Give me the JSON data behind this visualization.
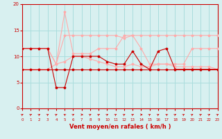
{
  "background_color": "#d8f0f0",
  "grid_color": "#aadddd",
  "xlabel": "Vent moyen/en rafales ( km/h )",
  "xlim": [
    0,
    23
  ],
  "ylim": [
    0,
    20
  ],
  "yticks": [
    0,
    5,
    10,
    15,
    20
  ],
  "xticks": [
    0,
    1,
    2,
    3,
    4,
    5,
    6,
    7,
    8,
    9,
    10,
    11,
    12,
    13,
    14,
    15,
    16,
    17,
    18,
    19,
    20,
    21,
    22,
    23
  ],
  "line1_x": [
    0,
    1,
    2,
    3,
    4,
    5,
    6,
    7,
    8,
    9,
    10,
    11,
    12,
    13,
    14,
    15,
    16,
    17,
    18,
    19,
    20,
    21,
    22,
    23
  ],
  "line1_y": [
    7.5,
    7.5,
    7.5,
    7.5,
    7.5,
    7.5,
    7.5,
    7.5,
    7.5,
    7.5,
    7.5,
    7.5,
    7.5,
    7.5,
    7.5,
    7.5,
    7.5,
    7.5,
    7.5,
    7.5,
    7.5,
    7.5,
    7.5,
    7.5
  ],
  "line1_color": "#cc0000",
  "line2_x": [
    0,
    1,
    2,
    3,
    4,
    5,
    6,
    7,
    8,
    9,
    10,
    11,
    12,
    13,
    14,
    15,
    16,
    17,
    18,
    19,
    20,
    21,
    22,
    23
  ],
  "line2_y": [
    11.5,
    11.5,
    11.5,
    11.5,
    4.0,
    4.0,
    10.0,
    10.0,
    10.0,
    10.0,
    9.0,
    8.5,
    8.5,
    11.0,
    8.5,
    7.5,
    11.0,
    11.5,
    7.5,
    7.5,
    7.5,
    7.5,
    7.5,
    7.5
  ],
  "line2_color": "#cc0000",
  "line3_x": [
    0,
    1,
    2,
    3,
    4,
    5,
    6,
    7,
    8,
    9,
    10,
    11,
    12,
    13,
    14,
    15,
    16,
    17,
    18,
    19,
    20,
    21,
    22,
    23
  ],
  "line3_y": [
    11.5,
    11.5,
    11.5,
    11.5,
    8.5,
    14.0,
    14.0,
    14.0,
    14.0,
    14.0,
    14.0,
    14.0,
    13.5,
    14.0,
    14.0,
    14.0,
    14.0,
    14.0,
    14.0,
    14.0,
    14.0,
    14.0,
    14.0,
    14.0
  ],
  "line3_color": "#ffaaaa",
  "line4_x": [
    0,
    1,
    2,
    3,
    4,
    5,
    6,
    7,
    8,
    9,
    10,
    11,
    12,
    13,
    14,
    15,
    16,
    17,
    18,
    19,
    20,
    21,
    22,
    23
  ],
  "line4_y": [
    11.5,
    11.5,
    11.5,
    11.5,
    8.5,
    18.5,
    10.5,
    10.5,
    10.5,
    11.5,
    11.5,
    11.5,
    14.0,
    14.0,
    11.5,
    8.5,
    8.5,
    8.5,
    8.5,
    8.5,
    11.5,
    11.5,
    11.5,
    11.5
  ],
  "line4_color": "#ffaaaa",
  "line5_x": [
    0,
    1,
    2,
    3,
    4,
    5,
    6,
    7,
    8,
    9,
    10,
    11,
    12,
    13,
    14,
    15,
    16,
    17,
    18,
    19,
    20,
    21,
    22,
    23
  ],
  "line5_y": [
    7.5,
    7.5,
    7.5,
    7.5,
    8.5,
    9.0,
    10.0,
    10.0,
    9.5,
    9.0,
    8.5,
    8.0,
    8.0,
    8.5,
    8.0,
    8.0,
    8.5,
    8.5,
    8.0,
    8.0,
    8.0,
    8.0,
    8.0,
    7.5
  ],
  "line5_color": "#ffaaaa",
  "red_color": "#cc0000",
  "marker": "*",
  "markersize": 2.5,
  "linewidth": 0.8,
  "arrow_angles_deg": [
    45,
    45,
    45,
    45,
    45,
    315,
    45,
    90,
    45,
    45,
    45,
    45,
    45,
    45,
    90,
    45,
    45,
    315,
    45,
    45,
    45,
    45,
    45,
    45
  ]
}
